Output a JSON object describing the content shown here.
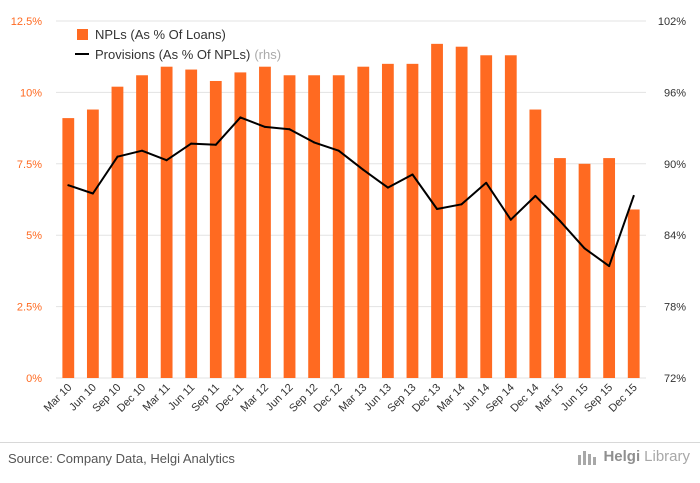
{
  "chart_data": {
    "type": "bar",
    "categories": [
      "Mar 10",
      "Jun 10",
      "Sep 10",
      "Dec 10",
      "Mar 11",
      "Jun 11",
      "Sep 11",
      "Dec 11",
      "Mar 12",
      "Jun 12",
      "Sep 12",
      "Dec 12",
      "Mar 13",
      "Jun 13",
      "Sep 13",
      "Dec 13",
      "Mar 14",
      "Jun 14",
      "Sep 14",
      "Dec 14",
      "Mar 15",
      "Jun 15",
      "Sep 15",
      "Dec 15"
    ],
    "series": [
      {
        "name": "NPLs (As % Of Loans)",
        "type": "bar",
        "axis": "left",
        "color": "#FF6A21",
        "values": [
          9.1,
          9.4,
          10.2,
          10.6,
          10.9,
          10.8,
          10.4,
          10.7,
          10.9,
          10.6,
          10.6,
          10.6,
          10.9,
          11.0,
          11.0,
          11.7,
          11.6,
          11.3,
          11.3,
          9.4,
          7.7,
          7.5,
          7.7,
          5.9
        ]
      },
      {
        "name": "Provisions (As % Of NPLs)",
        "legend_suffix": "(rhs)",
        "type": "line",
        "axis": "right",
        "color": "#000000",
        "values": [
          88.2,
          87.5,
          90.6,
          91.1,
          90.3,
          91.7,
          91.6,
          93.9,
          93.1,
          92.9,
          91.8,
          91.1,
          89.5,
          88.0,
          89.1,
          86.2,
          86.6,
          88.4,
          85.3,
          87.3,
          85.2,
          82.9,
          81.4,
          87.3
        ]
      }
    ],
    "left_axis": {
      "min": 0,
      "max": 12.5,
      "ticks": [
        "0%",
        "2.5%",
        "5%",
        "7.5%",
        "10%",
        "12.5%"
      ],
      "tick_values": [
        0,
        2.5,
        5,
        7.5,
        10,
        12.5
      ]
    },
    "right_axis": {
      "min": 72,
      "max": 102,
      "ticks": [
        "72%",
        "78%",
        "84%",
        "90%",
        "96%",
        "102%"
      ],
      "tick_values": [
        72,
        78,
        84,
        90,
        96,
        102
      ]
    },
    "grid": true,
    "legend_position": "top-left"
  },
  "footer": {
    "source": "Source: Company Data, Helgi Analytics",
    "logo_brand": "Helgi",
    "logo_brand2": "Library"
  },
  "colors": {
    "bar": "#FF6A21",
    "line": "#000000",
    "left_tick": "#FF6A21",
    "grid": "#e3e3e3"
  }
}
